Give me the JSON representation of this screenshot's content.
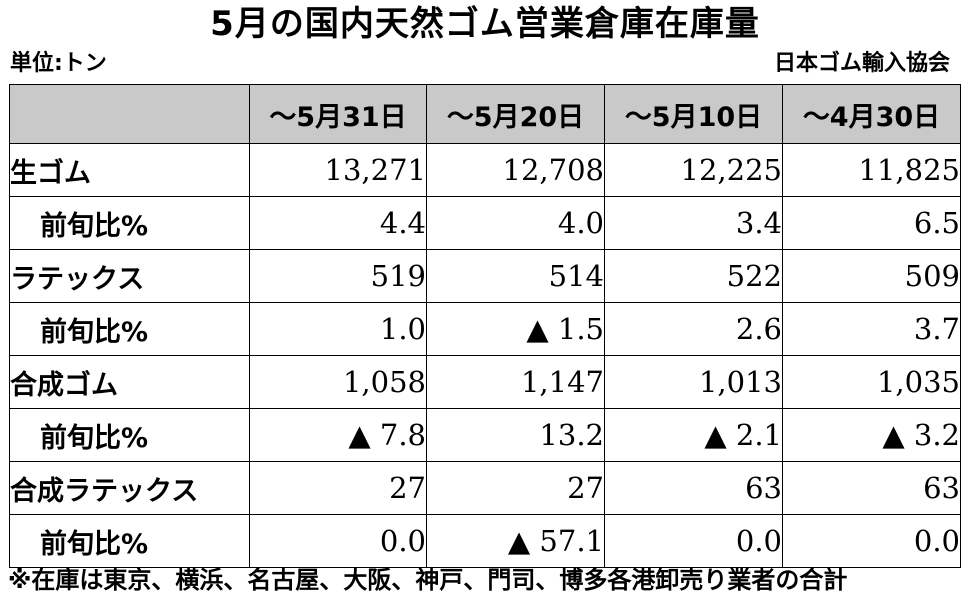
{
  "title": "5月の国内天然ゴム営業倉庫在庫量",
  "unit": "単位:トン",
  "source": "日本ゴム輸入協会",
  "headers": [
    "～5月31日",
    "～5月20日",
    "～5月10日",
    "～4月30日"
  ],
  "rows": [
    {
      "label": "生ゴム",
      "values": [
        "13,271",
        "12,708",
        "12,225",
        "11,825"
      ]
    },
    {
      "label": "前旬比%",
      "values": [
        "4.4",
        "4.0",
        "3.4",
        "6.5"
      ]
    },
    {
      "label": "ラテックス",
      "values": [
        "519",
        "514",
        "522",
        "509"
      ]
    },
    {
      "label": "前旬比%",
      "values": [
        "1.0",
        "▲ 1.5",
        "2.6",
        "3.7"
      ]
    },
    {
      "label": "合成ゴム",
      "values": [
        "1,058",
        "1,147",
        "1,013",
        "1,035"
      ]
    },
    {
      "label": "前旬比%",
      "values": [
        "▲ 7.8",
        "13.2",
        "▲ 2.1",
        "▲ 3.2"
      ]
    },
    {
      "label": "合成ラテックス",
      "values": [
        "27",
        "27",
        "63",
        "63"
      ]
    },
    {
      "label": "前旬比%",
      "values": [
        "0.0",
        "▲ 57.1",
        "0.0",
        "0.0"
      ]
    }
  ],
  "note": "※在庫は東京、横浜、名古屋、大阪、神戸、門司、博多各港卸売り業者の合計"
}
